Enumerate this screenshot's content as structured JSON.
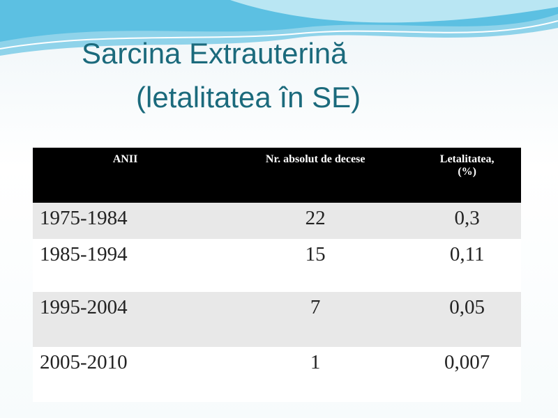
{
  "title": {
    "line1": "Sarcina Extrauterină",
    "line2": "(letalitatea în SE)"
  },
  "table": {
    "header": [
      "ANII",
      "Nr. absolut de decese",
      "Letalitatea,\n(%)"
    ],
    "rows": [
      [
        "1975-1984",
        "22",
        "0,3"
      ],
      [
        "1985-1994",
        "15",
        "0,11"
      ],
      [
        "1995-2004",
        "7",
        "0,05"
      ],
      [
        "2005-2010",
        "1",
        "0,007"
      ]
    ]
  }
}
